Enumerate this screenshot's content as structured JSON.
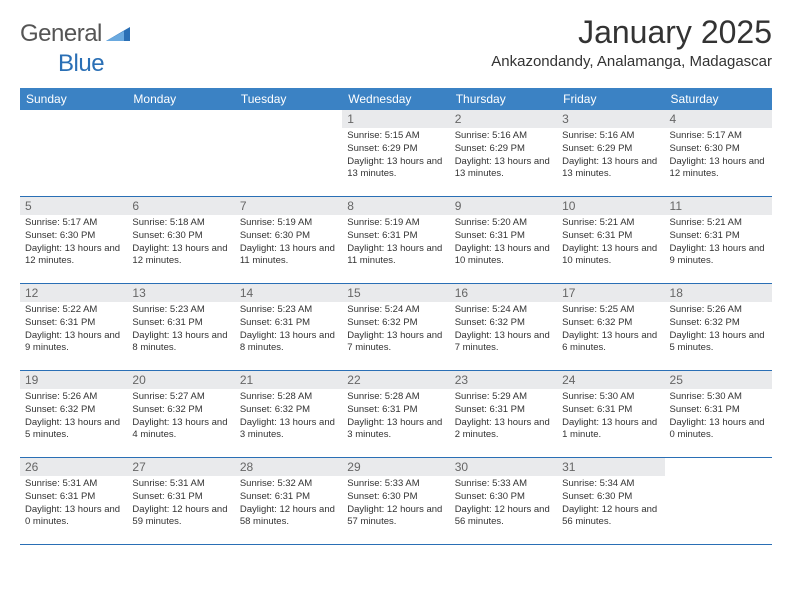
{
  "brand": {
    "name1": "General",
    "name2": "Blue"
  },
  "title": "January 2025",
  "location": "Ankazondandy, Analamanga, Madagascar",
  "colors": {
    "header_bg": "#3b82c4",
    "row_border": "#2a6fb5",
    "daynum_bg": "#e9eaec",
    "text": "#333333",
    "muted": "#666666"
  },
  "day_names": [
    "Sunday",
    "Monday",
    "Tuesday",
    "Wednesday",
    "Thursday",
    "Friday",
    "Saturday"
  ],
  "weeks": [
    [
      {
        "n": "",
        "sr": "",
        "ss": "",
        "dl": ""
      },
      {
        "n": "",
        "sr": "",
        "ss": "",
        "dl": ""
      },
      {
        "n": "",
        "sr": "",
        "ss": "",
        "dl": ""
      },
      {
        "n": "1",
        "sr": "5:15 AM",
        "ss": "6:29 PM",
        "dl": "13 hours and 13 minutes."
      },
      {
        "n": "2",
        "sr": "5:16 AM",
        "ss": "6:29 PM",
        "dl": "13 hours and 13 minutes."
      },
      {
        "n": "3",
        "sr": "5:16 AM",
        "ss": "6:29 PM",
        "dl": "13 hours and 13 minutes."
      },
      {
        "n": "4",
        "sr": "5:17 AM",
        "ss": "6:30 PM",
        "dl": "13 hours and 12 minutes."
      }
    ],
    [
      {
        "n": "5",
        "sr": "5:17 AM",
        "ss": "6:30 PM",
        "dl": "13 hours and 12 minutes."
      },
      {
        "n": "6",
        "sr": "5:18 AM",
        "ss": "6:30 PM",
        "dl": "13 hours and 12 minutes."
      },
      {
        "n": "7",
        "sr": "5:19 AM",
        "ss": "6:30 PM",
        "dl": "13 hours and 11 minutes."
      },
      {
        "n": "8",
        "sr": "5:19 AM",
        "ss": "6:31 PM",
        "dl": "13 hours and 11 minutes."
      },
      {
        "n": "9",
        "sr": "5:20 AM",
        "ss": "6:31 PM",
        "dl": "13 hours and 10 minutes."
      },
      {
        "n": "10",
        "sr": "5:21 AM",
        "ss": "6:31 PM",
        "dl": "13 hours and 10 minutes."
      },
      {
        "n": "11",
        "sr": "5:21 AM",
        "ss": "6:31 PM",
        "dl": "13 hours and 9 minutes."
      }
    ],
    [
      {
        "n": "12",
        "sr": "5:22 AM",
        "ss": "6:31 PM",
        "dl": "13 hours and 9 minutes."
      },
      {
        "n": "13",
        "sr": "5:23 AM",
        "ss": "6:31 PM",
        "dl": "13 hours and 8 minutes."
      },
      {
        "n": "14",
        "sr": "5:23 AM",
        "ss": "6:31 PM",
        "dl": "13 hours and 8 minutes."
      },
      {
        "n": "15",
        "sr": "5:24 AM",
        "ss": "6:32 PM",
        "dl": "13 hours and 7 minutes."
      },
      {
        "n": "16",
        "sr": "5:24 AM",
        "ss": "6:32 PM",
        "dl": "13 hours and 7 minutes."
      },
      {
        "n": "17",
        "sr": "5:25 AM",
        "ss": "6:32 PM",
        "dl": "13 hours and 6 minutes."
      },
      {
        "n": "18",
        "sr": "5:26 AM",
        "ss": "6:32 PM",
        "dl": "13 hours and 5 minutes."
      }
    ],
    [
      {
        "n": "19",
        "sr": "5:26 AM",
        "ss": "6:32 PM",
        "dl": "13 hours and 5 minutes."
      },
      {
        "n": "20",
        "sr": "5:27 AM",
        "ss": "6:32 PM",
        "dl": "13 hours and 4 minutes."
      },
      {
        "n": "21",
        "sr": "5:28 AM",
        "ss": "6:32 PM",
        "dl": "13 hours and 3 minutes."
      },
      {
        "n": "22",
        "sr": "5:28 AM",
        "ss": "6:31 PM",
        "dl": "13 hours and 3 minutes."
      },
      {
        "n": "23",
        "sr": "5:29 AM",
        "ss": "6:31 PM",
        "dl": "13 hours and 2 minutes."
      },
      {
        "n": "24",
        "sr": "5:30 AM",
        "ss": "6:31 PM",
        "dl": "13 hours and 1 minute."
      },
      {
        "n": "25",
        "sr": "5:30 AM",
        "ss": "6:31 PM",
        "dl": "13 hours and 0 minutes."
      }
    ],
    [
      {
        "n": "26",
        "sr": "5:31 AM",
        "ss": "6:31 PM",
        "dl": "13 hours and 0 minutes."
      },
      {
        "n": "27",
        "sr": "5:31 AM",
        "ss": "6:31 PM",
        "dl": "12 hours and 59 minutes."
      },
      {
        "n": "28",
        "sr": "5:32 AM",
        "ss": "6:31 PM",
        "dl": "12 hours and 58 minutes."
      },
      {
        "n": "29",
        "sr": "5:33 AM",
        "ss": "6:30 PM",
        "dl": "12 hours and 57 minutes."
      },
      {
        "n": "30",
        "sr": "5:33 AM",
        "ss": "6:30 PM",
        "dl": "12 hours and 56 minutes."
      },
      {
        "n": "31",
        "sr": "5:34 AM",
        "ss": "6:30 PM",
        "dl": "12 hours and 56 minutes."
      },
      {
        "n": "",
        "sr": "",
        "ss": "",
        "dl": ""
      }
    ]
  ],
  "labels": {
    "sunrise": "Sunrise: ",
    "sunset": "Sunset: ",
    "daylight": "Daylight: "
  }
}
